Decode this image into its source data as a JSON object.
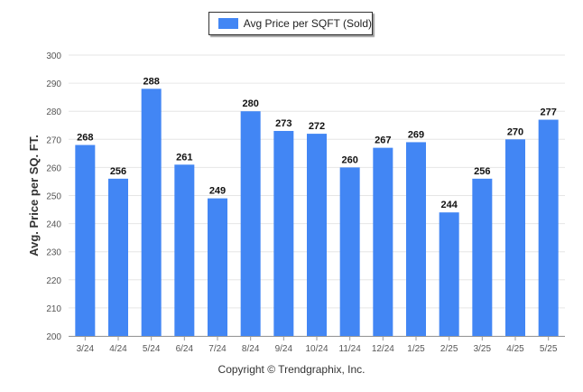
{
  "legend": {
    "label": "Avg Price per SQFT (Sold)"
  },
  "footer": {
    "text": "Copyright © Trendgraphix, Inc."
  },
  "colors": {
    "bar": "#4286f4",
    "grid": "#e6e6e6",
    "axis": "#999999"
  },
  "chart_data": {
    "type": "bar",
    "title": "",
    "xlabel": "",
    "ylabel": "Avg. Price per SQ. FT.",
    "categories": [
      "3/24",
      "4/24",
      "5/24",
      "6/24",
      "7/24",
      "8/24",
      "9/24",
      "10/24",
      "11/24",
      "12/24",
      "1/25",
      "2/25",
      "3/25",
      "4/25",
      "5/25"
    ],
    "series": [
      {
        "name": "Avg Price per SQFT (Sold)",
        "values": [
          268,
          256,
          288,
          261,
          249,
          280,
          273,
          272,
          260,
          267,
          269,
          244,
          256,
          270,
          277
        ]
      }
    ],
    "ylim": [
      200,
      300
    ],
    "yticks": [
      200,
      210,
      220,
      230,
      240,
      250,
      260,
      270,
      280,
      290,
      300
    ],
    "grid": true,
    "legend_position": "top-center"
  }
}
